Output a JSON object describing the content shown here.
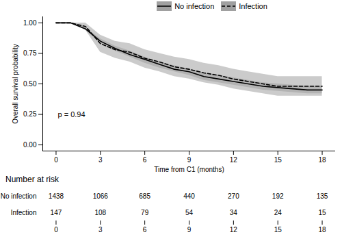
{
  "chart_data": {
    "type": "line",
    "legend": "top",
    "xlabel": "Time from C1 (months)",
    "ylabel": "Overall survival probability",
    "x": [
      0,
      1,
      2,
      3,
      4,
      5,
      6,
      7,
      8,
      9,
      10,
      11,
      12,
      13,
      14,
      15,
      16,
      17,
      18
    ],
    "xlim": [
      -0.9,
      18.9
    ],
    "xticks": [
      0,
      3,
      6,
      9,
      12,
      15,
      18
    ],
    "ylim": [
      -0.05,
      1.05
    ],
    "yticks": [
      {
        "value": 0,
        "label": "0.00"
      },
      {
        "value": 0.25,
        "label": "0.25"
      },
      {
        "value": 0.5,
        "label": "0.50"
      },
      {
        "value": 0.75,
        "label": "0.75"
      },
      {
        "value": 1,
        "label": "1.00"
      }
    ],
    "series": [
      {
        "name": "No infection",
        "color": "#000000",
        "line_style": "solid",
        "values": [
          1,
          1,
          0.95,
          0.85,
          0.79,
          0.74,
          0.7,
          0.66,
          0.62,
          0.6,
          0.56,
          0.54,
          0.52,
          0.5,
          0.48,
          0.47,
          0.46,
          0.45,
          0.45
        ],
        "lower": [
          1,
          1,
          0.94,
          0.83,
          0.77,
          0.72,
          0.67,
          0.63,
          0.6,
          0.57,
          0.53,
          0.51,
          0.49,
          0.47,
          0.45,
          0.44,
          0.43,
          0.42,
          0.42
        ],
        "upper": [
          1,
          1,
          0.96,
          0.87,
          0.81,
          0.77,
          0.72,
          0.68,
          0.65,
          0.62,
          0.59,
          0.57,
          0.55,
          0.53,
          0.51,
          0.5,
          0.49,
          0.48,
          0.48
        ]
      },
      {
        "name": "Infection",
        "color": "#000000",
        "line_style": "dashed",
        "values": [
          1,
          1,
          0.97,
          0.83,
          0.78,
          0.76,
          0.71,
          0.68,
          0.64,
          0.62,
          0.59,
          0.57,
          0.54,
          0.52,
          0.5,
          0.48,
          0.48,
          0.48,
          0.48
        ],
        "lower": [
          1,
          1,
          0.94,
          0.76,
          0.71,
          0.68,
          0.63,
          0.6,
          0.56,
          0.54,
          0.51,
          0.49,
          0.46,
          0.44,
          0.42,
          0.4,
          0.4,
          0.4,
          0.4
        ],
        "upper": [
          1,
          1,
          1,
          0.9,
          0.85,
          0.83,
          0.78,
          0.75,
          0.72,
          0.7,
          0.67,
          0.65,
          0.62,
          0.6,
          0.58,
          0.56,
          0.56,
          0.56,
          0.56
        ]
      }
    ],
    "annotations": [
      "p = 0.94"
    ],
    "risk_table": {
      "title": "Number at risk",
      "times": [
        0,
        3,
        6,
        9,
        12,
        15,
        18
      ],
      "rows": [
        {
          "name": "No infection",
          "values": [
            1438,
            1066,
            685,
            440,
            270,
            192,
            135
          ]
        },
        {
          "name": "Infection",
          "values": [
            147,
            108,
            79,
            54,
            34,
            24,
            15
          ]
        }
      ]
    }
  }
}
